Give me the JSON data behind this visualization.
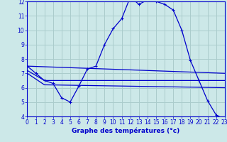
{
  "title": "Graphe des températures (°c)",
  "background_color": "#cce8e8",
  "grid_color": "#aacccc",
  "line_color": "#0000cc",
  "x_min": 0,
  "x_max": 23,
  "y_min": 4,
  "y_max": 12,
  "line1_markers": true,
  "line1": [
    [
      0,
      7.5
    ],
    [
      1,
      7.0
    ],
    [
      2,
      6.5
    ],
    [
      3,
      6.3
    ],
    [
      4,
      5.3
    ],
    [
      5,
      5.0
    ],
    [
      6,
      6.1
    ],
    [
      7,
      7.3
    ],
    [
      8,
      7.5
    ],
    [
      9,
      9.0
    ],
    [
      10,
      10.1
    ],
    [
      11,
      10.8
    ],
    [
      12,
      12.3
    ],
    [
      13,
      11.8
    ],
    [
      14,
      12.1
    ],
    [
      15,
      12.0
    ],
    [
      16,
      11.8
    ],
    [
      17,
      11.4
    ],
    [
      18,
      10.0
    ],
    [
      19,
      7.9
    ],
    [
      20,
      6.5
    ],
    [
      21,
      5.1
    ],
    [
      22,
      4.1
    ],
    [
      23,
      3.8
    ]
  ],
  "line2": [
    [
      0,
      7.5
    ],
    [
      23,
      7.0
    ]
  ],
  "line3": [
    [
      0,
      7.2
    ],
    [
      2,
      6.5
    ],
    [
      23,
      6.5
    ]
  ],
  "line4": [
    [
      0,
      7.0
    ],
    [
      2,
      6.2
    ],
    [
      23,
      6.0
    ]
  ]
}
